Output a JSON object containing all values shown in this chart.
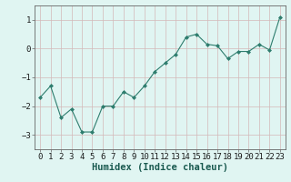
{
  "x": [
    0,
    1,
    2,
    3,
    4,
    5,
    6,
    7,
    8,
    9,
    10,
    11,
    12,
    13,
    14,
    15,
    16,
    17,
    18,
    19,
    20,
    21,
    22,
    23
  ],
  "y": [
    -1.7,
    -1.3,
    -2.4,
    -2.1,
    -2.9,
    -2.9,
    -2.0,
    -2.0,
    -1.5,
    -1.7,
    -1.3,
    -0.8,
    -0.5,
    -0.2,
    0.4,
    0.5,
    0.15,
    0.1,
    -0.35,
    -0.1,
    -0.1,
    0.15,
    -0.05,
    1.1
  ],
  "line_color": "#2e7d6e",
  "marker": "D",
  "marker_size": 2.0,
  "bg_color": "#e0f5f2",
  "grid_color": "#d4b8b8",
  "xlabel": "Humidex (Indice chaleur)",
  "xlabel_fontsize": 7.5,
  "ylim": [
    -3.5,
    1.5
  ],
  "yticks": [
    -3,
    -2,
    -1,
    0,
    1
  ],
  "xlim": [
    -0.5,
    23.5
  ],
  "tick_fontsize": 6.5,
  "spine_color": "#666666"
}
